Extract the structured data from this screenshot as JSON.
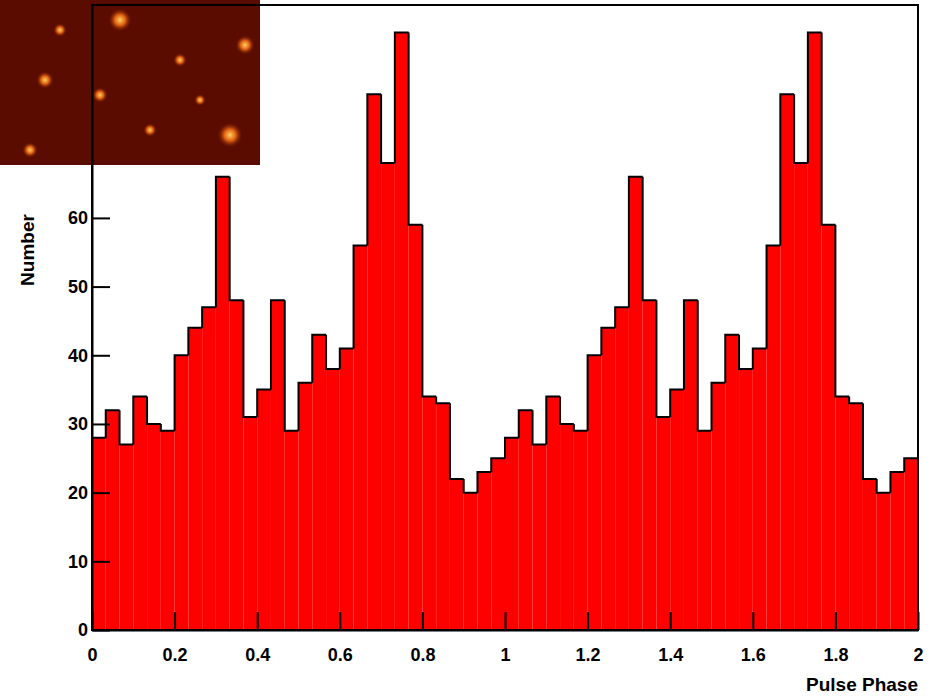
{
  "chart_data": {
    "type": "histogram",
    "x_label": "Pulse Phase",
    "y_label": "Number",
    "color": "#ff0000",
    "bins": [
      0,
      0.0333,
      0.0667,
      0.1,
      0.1333,
      0.1667,
      0.2,
      0.2333,
      0.2667,
      0.3,
      0.3333,
      0.3667,
      0.4,
      0.4333,
      0.4667,
      0.5,
      0.5333,
      0.5667,
      0.6,
      0.6333,
      0.6667,
      0.7,
      0.7333,
      0.7667,
      0.8,
      0.8333,
      0.8667,
      0.9,
      0.9333,
      0.9667,
      1,
      1.0333,
      1.0667,
      1.1,
      1.1333,
      1.1667,
      1.2,
      1.2333,
      1.2667,
      1.3,
      1.3333,
      1.3667,
      1.4,
      1.4333,
      1.4667,
      1.5,
      1.5333,
      1.5667,
      1.6,
      1.6333,
      1.6667,
      1.7,
      1.7333,
      1.7667,
      1.8,
      1.8333,
      1.8667,
      1.9,
      1.9333,
      1.9667,
      2
    ],
    "values": [
      28,
      32,
      27,
      34,
      30,
      29,
      40,
      44,
      47,
      66,
      48,
      31,
      35,
      48,
      29,
      36,
      43,
      38,
      41,
      56,
      78,
      68,
      87,
      59,
      34,
      33,
      22,
      20,
      23,
      25,
      28,
      32,
      27,
      34,
      30,
      29,
      40,
      44,
      47,
      66,
      48,
      31,
      35,
      48,
      29,
      36,
      43,
      38,
      41,
      56,
      78,
      68,
      87,
      59,
      34,
      33,
      22,
      20,
      23,
      25
    ],
    "xlim": [
      0,
      2
    ],
    "ylim": [
      0,
      91
    ],
    "xticks": [
      0,
      0.2,
      0.4,
      0.6,
      0.8,
      1,
      1.2,
      1.4,
      1.6,
      1.8,
      2
    ],
    "yticks": [
      0,
      10,
      20,
      30,
      40,
      50,
      60
    ]
  }
}
